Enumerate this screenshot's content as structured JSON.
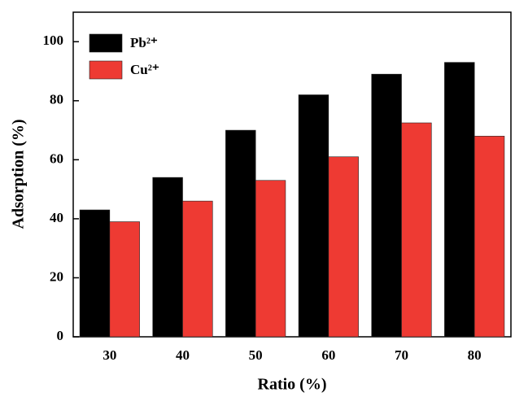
{
  "chart_data": {
    "type": "bar",
    "xlabel": "Ratio (%)",
    "ylabel": "Adsorption (%)",
    "categories": [
      "30",
      "40",
      "50",
      "60",
      "70",
      "80"
    ],
    "series": [
      {
        "name": "Pb²⁺",
        "color": "#000000",
        "values": [
          43,
          54,
          70,
          82,
          89,
          93
        ]
      },
      {
        "name": "Cu²⁺",
        "color": "#ee3a33",
        "values": [
          39,
          46,
          53,
          61,
          72.5,
          68
        ]
      }
    ],
    "ylim": [
      0,
      110
    ],
    "yticks": [
      0,
      20,
      40,
      60,
      80,
      100
    ],
    "legend": "upper-left"
  }
}
